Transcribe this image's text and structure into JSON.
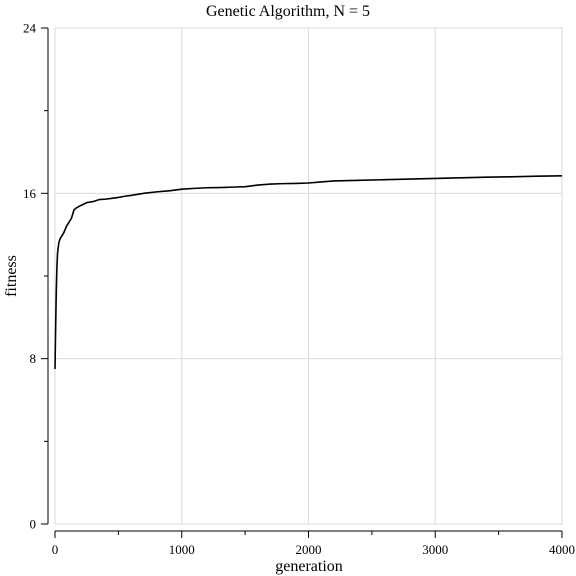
{
  "chart_data": {
    "type": "line",
    "title": "Genetic Algorithm, N = 5",
    "xlabel": "generation",
    "ylabel": "fitness",
    "xlim": [
      0,
      4000
    ],
    "ylim": [
      0,
      24
    ],
    "x_ticks": [
      0,
      1000,
      2000,
      3000,
      4000
    ],
    "x_tick_labels": [
      "0",
      "1000",
      "2000",
      "3000",
      "4000"
    ],
    "x_minor_ticks": [
      500,
      1500,
      2500,
      3500
    ],
    "y_ticks": [
      0,
      8,
      16,
      24
    ],
    "y_tick_labels": [
      "0",
      "8",
      "16",
      "24"
    ],
    "y_minor_ticks": [
      4,
      12,
      20
    ],
    "grid": true,
    "series": [
      {
        "color": "#000000",
        "x": [
          0,
          5,
          10,
          15,
          20,
          30,
          40,
          50,
          70,
          90,
          110,
          130,
          150,
          170,
          200,
          250,
          300,
          350,
          400,
          450,
          500,
          550,
          600,
          700,
          800,
          900,
          1000,
          1100,
          1200,
          1300,
          1400,
          1500,
          1600,
          1700,
          1800,
          1900,
          2000,
          2100,
          2200,
          2400,
          2600,
          2800,
          3000,
          3200,
          3400,
          3600,
          3800,
          4000
        ],
        "values": [
          7.5,
          9.5,
          11.2,
          12.4,
          13.1,
          13.6,
          13.8,
          13.9,
          14.1,
          14.4,
          14.6,
          14.8,
          15.2,
          15.3,
          15.4,
          15.55,
          15.6,
          15.7,
          15.72,
          15.76,
          15.8,
          15.86,
          15.9,
          16.0,
          16.07,
          16.12,
          16.2,
          16.24,
          16.27,
          16.28,
          16.3,
          16.32,
          16.4,
          16.45,
          16.47,
          16.48,
          16.5,
          16.55,
          16.6,
          16.63,
          16.66,
          16.69,
          16.72,
          16.75,
          16.78,
          16.8,
          16.83,
          16.85
        ]
      }
    ]
  }
}
